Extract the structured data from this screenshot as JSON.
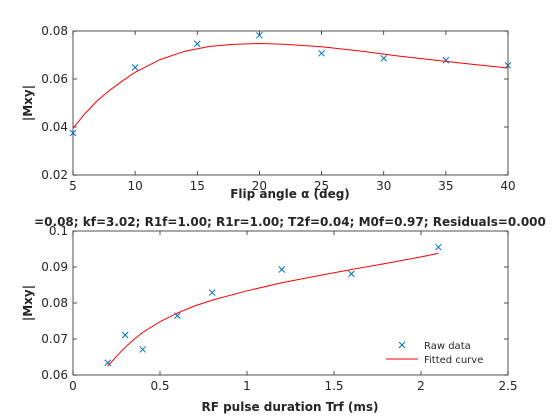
{
  "chart_data": [
    {
      "type": "scatter",
      "title": "",
      "xlabel": "Flip angle α (deg)",
      "ylabel": "|Mxy|",
      "xlim": [
        5,
        40
      ],
      "ylim": [
        0.02,
        0.08
      ],
      "xticks": [
        5,
        10,
        15,
        20,
        25,
        30,
        35,
        40
      ],
      "yticks": [
        0.02,
        0.04,
        0.06,
        0.08
      ],
      "xtick_labels": [
        "5",
        "10",
        "15",
        "20",
        "25",
        "30",
        "35",
        "40"
      ],
      "ytick_labels": [
        "0.02",
        "0.04",
        "0.06",
        "0.08"
      ],
      "grid": false,
      "series": [
        {
          "kind": "markers",
          "marker": "x",
          "color": "#0072BD",
          "x": [
            5,
            10,
            15,
            20,
            25,
            30,
            35,
            40
          ],
          "y": [
            0.0375,
            0.0648,
            0.0747,
            0.0782,
            0.0707,
            0.0686,
            0.0678,
            0.0657
          ]
        },
        {
          "kind": "line",
          "color": "#FF0000",
          "x": [
            5,
            6,
            7,
            8,
            9,
            10,
            12,
            14,
            16,
            18,
            20,
            22,
            25,
            28,
            31,
            34,
            37,
            40
          ],
          "y": [
            0.0395,
            0.0458,
            0.0512,
            0.0555,
            0.0593,
            0.0628,
            0.0681,
            0.0716,
            0.0736,
            0.0745,
            0.0748,
            0.0745,
            0.0734,
            0.0717,
            0.0697,
            0.0679,
            0.0662,
            0.0646
          ]
        }
      ]
    },
    {
      "type": "scatter",
      "title": "=0.08; kf=3.02; R1f=1.00; R1r=1.00; T2f=0.04; M0f=0.97; Residuals=0.000",
      "xlabel": "RF pulse duration Trf (ms)",
      "ylabel": "|Mxy|",
      "xlim": [
        0,
        2.5
      ],
      "ylim": [
        0.06,
        0.1
      ],
      "xticks": [
        0,
        0.5,
        1,
        1.5,
        2,
        2.5
      ],
      "yticks": [
        0.06,
        0.07,
        0.08,
        0.09,
        0.1
      ],
      "xtick_labels": [
        "0",
        "0.5",
        "1",
        "1.5",
        "2",
        "2.5"
      ],
      "ytick_labels": [
        "0.06",
        "0.07",
        "0.08",
        "0.09",
        "0.1"
      ],
      "grid": false,
      "legend_position": "bottom-right",
      "series": [
        {
          "name": "Raw data",
          "kind": "markers",
          "marker": "x",
          "color": "#0072BD",
          "x": [
            0.2,
            0.3,
            0.4,
            0.6,
            0.8,
            1.2,
            1.6,
            2.1
          ],
          "y": [
            0.0634,
            0.0711,
            0.0671,
            0.0765,
            0.0829,
            0.0893,
            0.0881,
            0.0955
          ]
        },
        {
          "name": "Fitted curve",
          "kind": "line",
          "color": "#FF0000",
          "x": [
            0.2,
            0.25,
            0.3,
            0.35,
            0.4,
            0.5,
            0.6,
            0.7,
            0.8,
            1.0,
            1.2,
            1.4,
            1.6,
            1.8,
            2.0,
            2.1
          ],
          "y": [
            0.0625,
            0.0652,
            0.0677,
            0.0699,
            0.0718,
            0.0748,
            0.0772,
            0.0792,
            0.0808,
            0.0834,
            0.0856,
            0.0875,
            0.0893,
            0.091,
            0.0928,
            0.0938
          ]
        }
      ]
    }
  ]
}
